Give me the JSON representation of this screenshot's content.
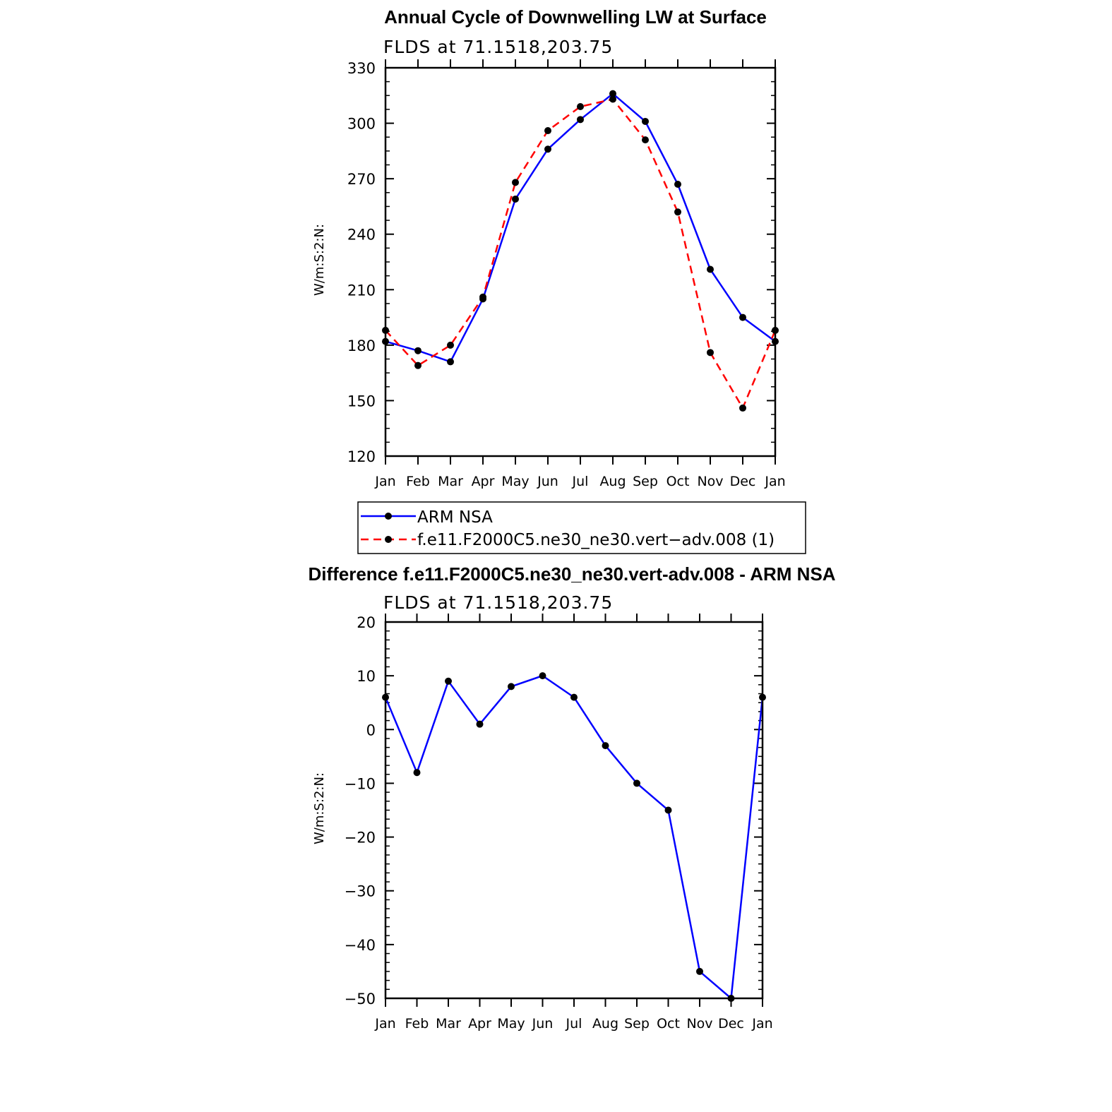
{
  "chart_data": [
    {
      "type": "line",
      "title": "Annual Cycle of Downwelling LW at Surface",
      "subtitle": "FLDS at 71.1518,203.75",
      "ylabel": "W/m:S:2:N:",
      "xlabel": "",
      "categories": [
        "Jan",
        "Feb",
        "Mar",
        "Apr",
        "May",
        "Jun",
        "Jul",
        "Aug",
        "Sep",
        "Oct",
        "Nov",
        "Dec",
        "Jan"
      ],
      "ylim": [
        120,
        330
      ],
      "yticks": [
        120,
        150,
        180,
        210,
        240,
        270,
        300,
        330
      ],
      "series": [
        {
          "name": "ARM NSA",
          "color": "#0000ff",
          "dash": "solid",
          "values": [
            182,
            177,
            171,
            205,
            259,
            286,
            302,
            316,
            301,
            267,
            221,
            195,
            182
          ]
        },
        {
          "name": "f.e11.F2000C5.ne30_ne30.vert−adv.008 (1)",
          "color": "#ff0000",
          "dash": "dashed",
          "values": [
            188,
            169,
            180,
            206,
            268,
            296,
            309,
            313,
            291,
            252,
            176,
            146,
            188
          ]
        }
      ],
      "legend": "below"
    },
    {
      "type": "line",
      "title": "Difference f.e11.F2000C5.ne30_ne30.vert-adv.008 - ARM NSA",
      "subtitle": "FLDS at 71.1518,203.75",
      "ylabel": "W/m:S:2:N:",
      "xlabel": "",
      "categories": [
        "Jan",
        "Feb",
        "Mar",
        "Apr",
        "May",
        "Jun",
        "Jul",
        "Aug",
        "Sep",
        "Oct",
        "Nov",
        "Dec",
        "Jan"
      ],
      "ylim": [
        -50,
        20
      ],
      "yticks": [
        -50,
        -40,
        -30,
        -20,
        -10,
        0,
        10,
        20
      ],
      "ytick_labels": [
        "−50",
        "−40",
        "−30",
        "−20",
        "−10",
        "0",
        "10",
        "20"
      ],
      "series": [
        {
          "color": "#0000ff",
          "dash": "solid",
          "values": [
            6,
            -8,
            9,
            1,
            8,
            10,
            6,
            -3,
            -10,
            -15,
            -45,
            -50,
            6
          ]
        }
      ]
    }
  ]
}
